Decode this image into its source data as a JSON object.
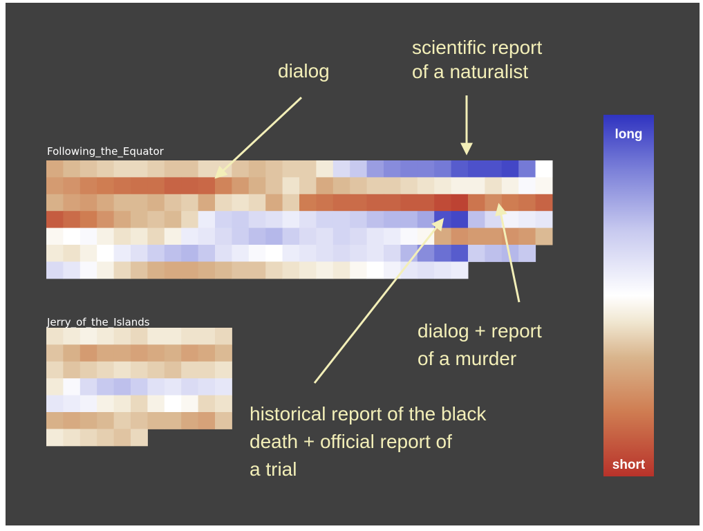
{
  "colors": {
    "background": "#404040",
    "text": "#ffffff",
    "annotation": "#f3efb8",
    "short": "#b8322a",
    "tan": "#d9b58d",
    "cream": "#f1e8d3",
    "white": "#ffffff",
    "long": "#2f33c0"
  },
  "chart_data": {
    "type": "heatmap",
    "value_scale": "0 = short, 1 = long",
    "legend": {
      "top_label": "long",
      "bottom_label": "short"
    },
    "books": [
      {
        "name": "Following_the_Equator",
        "columns": 30,
        "rows": [
          [
            0.3,
            0.34,
            0.36,
            0.38,
            0.4,
            0.4,
            0.38,
            0.36,
            0.36,
            0.4,
            0.4,
            0.36,
            0.34,
            0.36,
            0.38,
            0.38,
            0.44,
            0.62,
            0.68,
            0.78,
            0.82,
            0.84,
            0.84,
            0.86,
            0.92,
            0.94,
            0.94,
            0.96,
            0.86,
            0.5
          ],
          [
            0.26,
            0.24,
            0.2,
            0.18,
            0.16,
            0.15,
            0.15,
            0.12,
            0.12,
            0.13,
            0.2,
            0.26,
            0.32,
            0.36,
            0.42,
            0.38,
            0.3,
            0.34,
            0.36,
            0.38,
            0.38,
            0.4,
            0.42,
            0.44,
            0.46,
            0.46,
            0.42,
            0.46,
            0.52,
            0.48
          ],
          [
            0.32,
            0.28,
            0.26,
            0.3,
            0.34,
            0.34,
            0.32,
            0.36,
            0.38,
            0.3,
            0.4,
            0.42,
            0.4,
            0.3,
            0.38,
            0.18,
            0.16,
            0.14,
            0.14,
            0.12,
            0.12,
            0.1,
            0.1,
            0.06,
            0.04,
            0.16,
            0.22,
            0.18,
            0.16,
            0.12
          ],
          [
            0.1,
            0.14,
            0.18,
            0.24,
            0.3,
            0.34,
            0.36,
            0.34,
            0.4,
            0.56,
            0.64,
            0.66,
            0.62,
            0.6,
            0.56,
            0.6,
            0.64,
            0.64,
            0.66,
            0.7,
            0.72,
            0.72,
            0.76,
            0.94,
            0.96,
            0.7,
            0.62,
            0.54,
            0.56,
            0.58
          ],
          [
            0.48,
            0.5,
            0.52,
            0.46,
            0.42,
            0.44,
            0.4,
            0.46,
            0.56,
            0.58,
            0.62,
            0.66,
            0.7,
            0.72,
            0.66,
            0.62,
            0.6,
            0.64,
            0.62,
            0.58,
            0.56,
            0.52,
            0.48,
            0.3,
            0.24,
            0.26,
            0.26,
            0.24,
            0.26,
            0.34
          ],
          [
            0.44,
            0.42,
            0.46,
            0.5,
            0.56,
            0.6,
            0.66,
            0.7,
            0.72,
            0.68,
            0.6,
            0.56,
            0.52,
            0.5,
            0.56,
            0.58,
            0.6,
            0.62,
            0.6,
            0.58,
            0.62,
            0.72,
            0.82,
            0.88,
            0.92,
            0.66,
            0.7,
            0.72,
            0.68,
            null
          ],
          [
            0.62,
            0.58,
            0.52,
            0.46,
            0.4,
            0.36,
            0.32,
            0.3,
            0.3,
            0.32,
            0.34,
            0.36,
            0.36,
            0.4,
            0.42,
            0.44,
            0.46,
            0.44,
            0.48,
            0.5,
            0.54,
            0.58,
            0.6,
            0.58,
            0.56,
            null,
            null,
            null,
            null,
            null
          ]
        ]
      },
      {
        "name": "Jerry_of_the_Islands",
        "columns": 11,
        "rows": [
          [
            0.42,
            0.44,
            0.46,
            0.44,
            0.42,
            0.4,
            0.44,
            0.44,
            0.42,
            0.42,
            0.4
          ],
          [
            0.36,
            0.32,
            0.26,
            0.3,
            0.3,
            0.28,
            0.3,
            0.32,
            0.28,
            0.3,
            0.34
          ],
          [
            0.4,
            0.36,
            0.38,
            0.4,
            0.42,
            0.4,
            0.38,
            0.36,
            0.4,
            0.4,
            0.42
          ],
          [
            0.44,
            0.52,
            0.62,
            0.68,
            0.7,
            0.66,
            0.6,
            0.58,
            0.62,
            0.6,
            0.58
          ],
          [
            0.58,
            0.56,
            0.54,
            0.46,
            0.44,
            0.4,
            0.46,
            0.5,
            0.48,
            0.4,
            0.42
          ],
          [
            0.32,
            0.3,
            0.32,
            0.34,
            0.38,
            0.36,
            0.34,
            0.34,
            0.3,
            0.28,
            0.36
          ],
          [
            0.44,
            0.42,
            0.4,
            0.38,
            0.36,
            0.4,
            null,
            null,
            null,
            null,
            null
          ]
        ]
      }
    ],
    "annotations": [
      {
        "lines": [
          "dialog"
        ]
      },
      {
        "lines": [
          "scientific report",
          "of a naturalist"
        ]
      },
      {
        "lines": [
          "dialog + report",
          "of a murder"
        ]
      },
      {
        "lines": [
          "historical report of the black",
          "death + official report of",
          "a trial"
        ]
      }
    ]
  }
}
